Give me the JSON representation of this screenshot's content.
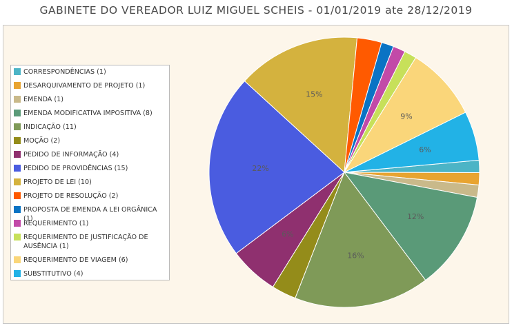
{
  "title": "GABINETE DO VEREADOR LUIZ MIGUEL SCHEIS - 01/01/2019 ate 28/12/2019",
  "chart_data": {
    "type": "pie",
    "slices": [
      {
        "label": "CORRESPONDÊNCIAS (1)",
        "value": 1,
        "color": "#4cb4c6",
        "pct_label": ""
      },
      {
        "label": "DESARQUIVAMENTO DE PROJETO (1)",
        "value": 1,
        "color": "#e8a431",
        "pct_label": ""
      },
      {
        "label": "EMENDA (1)",
        "value": 1,
        "color": "#c9b98a",
        "pct_label": ""
      },
      {
        "label": "EMENDA MODIFICATIVA IMPOSITIVA (8)",
        "value": 8,
        "color": "#5a9a78",
        "pct_label": "12%"
      },
      {
        "label": "INDICAÇÃO (11)",
        "value": 11,
        "color": "#7f9a58",
        "pct_label": "16%"
      },
      {
        "label": "MOÇÃO (2)",
        "value": 2,
        "color": "#948c1a",
        "pct_label": ""
      },
      {
        "label": "PEDIDO DE INFORMAÇÃO (4)",
        "value": 4,
        "color": "#8f306f",
        "pct_label": "6%"
      },
      {
        "label": "PEDIDO DE PROVIDÊNCIAS (15)",
        "value": 15,
        "color": "#4a5ce0",
        "pct_label": "22%"
      },
      {
        "label": "PROJETO DE LEI (10)",
        "value": 10,
        "color": "#d4b23e",
        "pct_label": "15%"
      },
      {
        "label": "PROJETO DE RESOLUÇÃO (2)",
        "value": 2,
        "color": "#ff5a00",
        "pct_label": ""
      },
      {
        "label": "PROPOSTA DE EMENDA A LEI ORGÂNICA (1)",
        "value": 1,
        "color": "#0a73c4",
        "pct_label": ""
      },
      {
        "label": "REQUERIMENTO (1)",
        "value": 1,
        "color": "#c24aa8",
        "pct_label": ""
      },
      {
        "label": "REQUERIMENTO DE JUSTIFICAÇÃO DE AUSÊNCIA (1)",
        "value": 1,
        "color": "#c7e05a",
        "pct_label": ""
      },
      {
        "label": "REQUERIMENTO DE VIAGEM (6)",
        "value": 6,
        "color": "#fad67a",
        "pct_label": "9%"
      },
      {
        "label": "SUBSTITUTIVO (4)",
        "value": 4,
        "color": "#22b2e6",
        "pct_label": "6%"
      }
    ],
    "legend_position": "left"
  }
}
